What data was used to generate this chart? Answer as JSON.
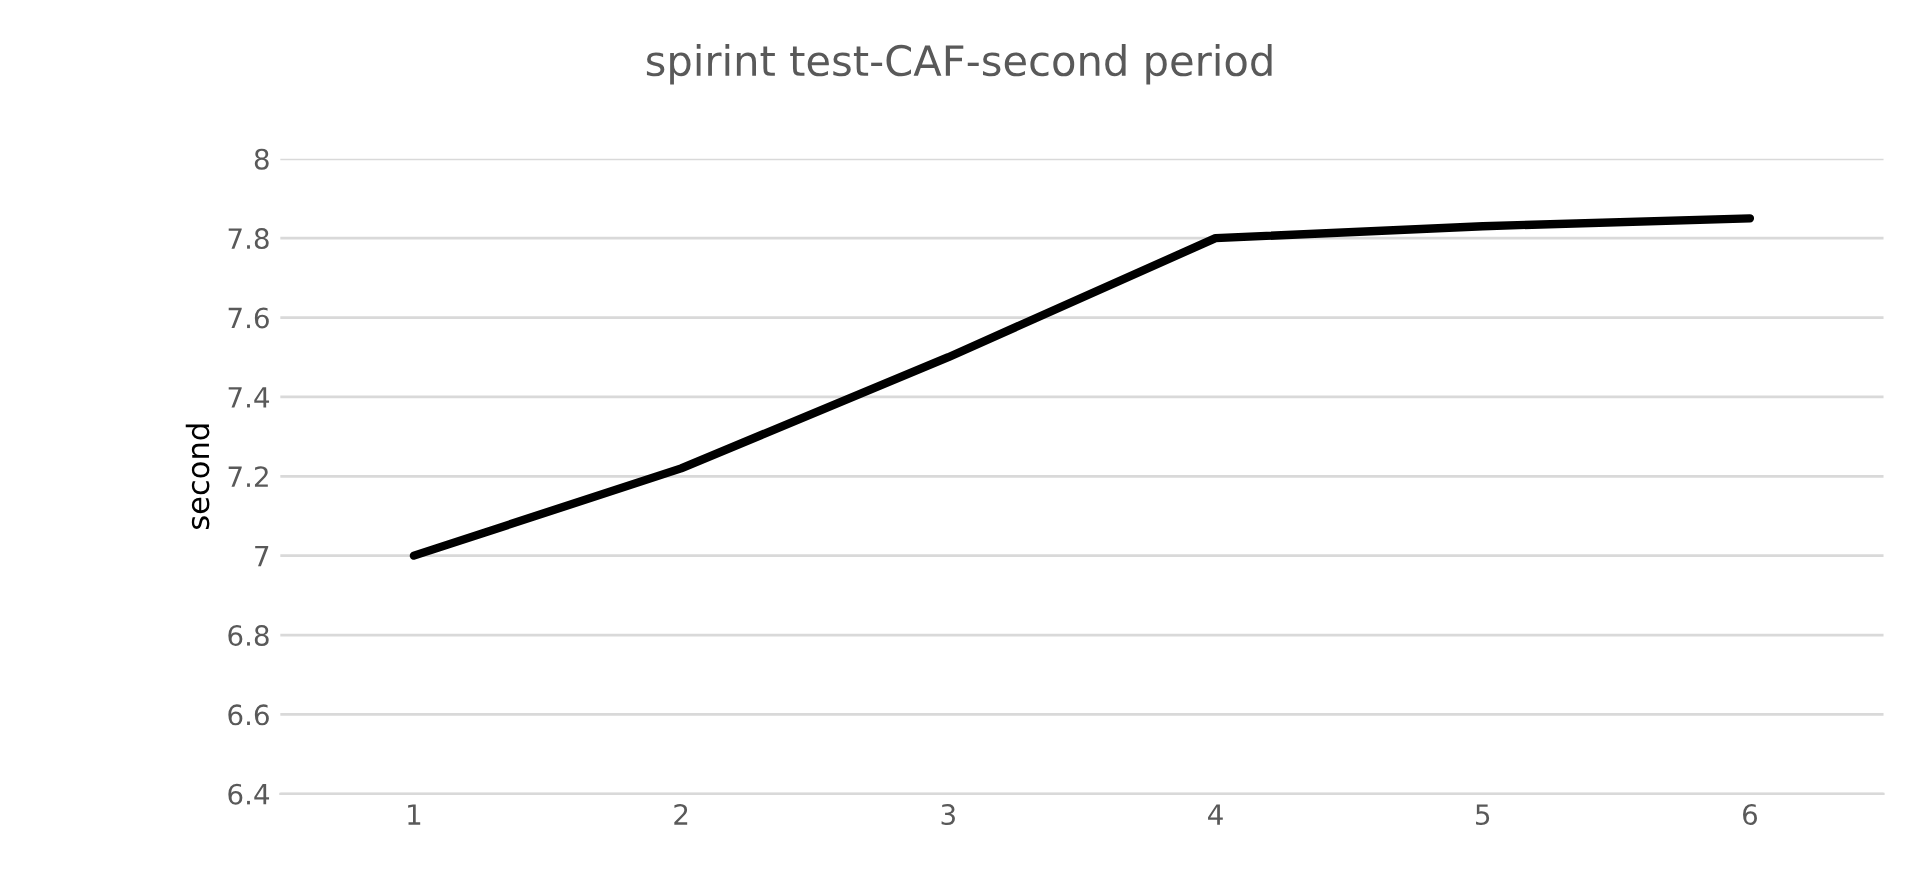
{
  "chart_data": {
    "type": "line",
    "title": "spirint test-CAF-second period",
    "ylabel": "second",
    "categories": [
      "1",
      "2",
      "3",
      "4",
      "5",
      "6"
    ],
    "series": [
      {
        "color": "#000000",
        "values": [
          7.0,
          7.22,
          7.5,
          7.8,
          7.83,
          7.85
        ]
      }
    ],
    "ylim": [
      6.4,
      8
    ],
    "yticks": [
      6.4,
      6.6,
      6.8,
      7,
      7.2,
      7.4,
      7.6,
      7.8,
      8
    ],
    "grid": "y"
  }
}
